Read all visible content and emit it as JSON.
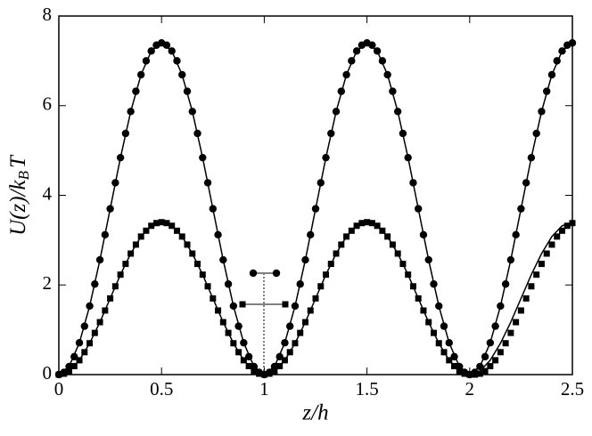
{
  "chart_data": {
    "type": "scatter",
    "x_label": "z/h",
    "y_label": [
      "U(z)/k",
      "B",
      "T"
    ],
    "xlim": [
      0,
      2.5
    ],
    "ylim": [
      0,
      8
    ],
    "xticks": [
      0,
      0.5,
      1,
      1.5,
      2,
      2.5
    ],
    "yticks": [
      0,
      2,
      4,
      6,
      8
    ],
    "series": [
      {
        "marker": "circle",
        "color": "#000000",
        "x": [
          0,
          0.025,
          0.05,
          0.075,
          0.1,
          0.125,
          0.15,
          0.175,
          0.2,
          0.225,
          0.25,
          0.275,
          0.3,
          0.325,
          0.35,
          0.375,
          0.4,
          0.425,
          0.45,
          0.475,
          0.5,
          0.525,
          0.55,
          0.575,
          0.6,
          0.625,
          0.65,
          0.675,
          0.7,
          0.725,
          0.75,
          0.775,
          0.8,
          0.825,
          0.85,
          0.875,
          0.9,
          0.925,
          0.95,
          0.975,
          1,
          1.025,
          1.05,
          1.075,
          1.1,
          1.125,
          1.15,
          1.175,
          1.2,
          1.225,
          1.25,
          1.275,
          1.3,
          1.325,
          1.35,
          1.375,
          1.4,
          1.425,
          1.45,
          1.475,
          1.5,
          1.525,
          1.55,
          1.575,
          1.6,
          1.625,
          1.65,
          1.675,
          1.7,
          1.725,
          1.75,
          1.775,
          1.8,
          1.825,
          1.85,
          1.875,
          1.9,
          1.925,
          1.95,
          1.975,
          2,
          2.025,
          2.05,
          2.075,
          2.1,
          2.125,
          2.15,
          2.175,
          2.2,
          2.225,
          2.25,
          2.275,
          2.3,
          2.325,
          2.35,
          2.375,
          2.4,
          2.425,
          2.45,
          2.475,
          2.5
        ],
        "values": [
          0,
          0.05,
          0.18,
          0.4,
          0.71,
          1.08,
          1.53,
          2.02,
          2.56,
          3.12,
          3.7,
          4.28,
          4.84,
          5.38,
          5.87,
          6.32,
          6.69,
          7.0,
          7.22,
          7.35,
          7.4,
          7.35,
          7.22,
          7.0,
          6.69,
          6.32,
          5.87,
          5.38,
          4.84,
          4.28,
          3.7,
          3.12,
          2.56,
          2.02,
          1.53,
          1.08,
          0.71,
          0.4,
          0.18,
          0.05,
          0,
          0.05,
          0.18,
          0.4,
          0.71,
          1.08,
          1.53,
          2.02,
          2.56,
          3.12,
          3.7,
          4.28,
          4.84,
          5.38,
          5.87,
          6.32,
          6.69,
          7.0,
          7.22,
          7.35,
          7.4,
          7.35,
          7.22,
          7.0,
          6.69,
          6.32,
          5.87,
          5.38,
          4.84,
          4.28,
          3.7,
          3.12,
          2.56,
          2.02,
          1.53,
          1.08,
          0.71,
          0.4,
          0.18,
          0.05,
          0,
          0.05,
          0.18,
          0.4,
          0.71,
          1.08,
          1.53,
          2.02,
          2.56,
          3.12,
          3.7,
          4.28,
          4.84,
          5.38,
          5.87,
          6.32,
          6.69,
          7.0,
          7.22,
          7.35,
          7.4
        ]
      },
      {
        "marker": "square",
        "color": "#000000",
        "x": [
          0,
          0.025,
          0.05,
          0.075,
          0.1,
          0.125,
          0.15,
          0.175,
          0.2,
          0.225,
          0.25,
          0.275,
          0.3,
          0.325,
          0.35,
          0.375,
          0.4,
          0.425,
          0.45,
          0.475,
          0.5,
          0.525,
          0.55,
          0.575,
          0.6,
          0.625,
          0.65,
          0.675,
          0.7,
          0.725,
          0.75,
          0.775,
          0.8,
          0.825,
          0.85,
          0.875,
          0.9,
          0.925,
          0.95,
          0.975,
          1,
          1.025,
          1.05,
          1.075,
          1.1,
          1.125,
          1.15,
          1.175,
          1.2,
          1.225,
          1.25,
          1.275,
          1.3,
          1.325,
          1.35,
          1.375,
          1.4,
          1.425,
          1.45,
          1.475,
          1.5,
          1.525,
          1.55,
          1.575,
          1.6,
          1.625,
          1.65,
          1.675,
          1.7,
          1.725,
          1.75,
          1.775,
          1.8,
          1.825,
          1.85,
          1.875,
          1.9,
          1.925,
          1.95,
          1.975,
          2,
          2.025,
          2.05,
          2.075,
          2.1,
          2.125,
          2.15,
          2.175,
          2.2,
          2.225,
          2.25,
          2.275,
          2.3,
          2.325,
          2.35,
          2.375,
          2.4,
          2.425,
          2.45,
          2.475,
          2.5
        ],
        "values": [
          0,
          0.02,
          0.08,
          0.19,
          0.32,
          0.5,
          0.7,
          0.93,
          1.17,
          1.43,
          1.7,
          1.97,
          2.23,
          2.47,
          2.7,
          2.9,
          3.08,
          3.21,
          3.32,
          3.38,
          3.4,
          3.38,
          3.32,
          3.21,
          3.08,
          2.9,
          2.7,
          2.47,
          2.23,
          1.97,
          1.7,
          1.43,
          1.17,
          0.93,
          0.7,
          0.5,
          0.32,
          0.19,
          0.08,
          0.02,
          0,
          0.02,
          0.08,
          0.19,
          0.32,
          0.5,
          0.7,
          0.93,
          1.17,
          1.43,
          1.7,
          1.97,
          2.23,
          2.47,
          2.7,
          2.9,
          3.08,
          3.21,
          3.32,
          3.38,
          3.4,
          3.38,
          3.32,
          3.21,
          3.08,
          2.9,
          2.7,
          2.47,
          2.23,
          1.97,
          1.7,
          1.43,
          1.17,
          0.93,
          0.7,
          0.5,
          0.32,
          0.19,
          0.08,
          0.02,
          0,
          0,
          0.02,
          0.08,
          0.19,
          0.32,
          0.5,
          0.7,
          0.93,
          1.17,
          1.43,
          1.7,
          1.97,
          2.23,
          2.47,
          2.7,
          2.9,
          3.08,
          3.21,
          3.32,
          3.38
        ]
      },
      {
        "marker": "none",
        "color": "#000000",
        "x": [
          0,
          0.05,
          0.1,
          0.15,
          0.2,
          0.25,
          0.3,
          0.35,
          0.4,
          0.45,
          0.5,
          0.55,
          0.6,
          0.65,
          0.7,
          0.75,
          0.8,
          0.85,
          0.9,
          0.95,
          1,
          1.05,
          1.1,
          1.15,
          1.2,
          1.25,
          1.3,
          1.35,
          1.4,
          1.45,
          1.5,
          1.55,
          1.6,
          1.65,
          1.7,
          1.75,
          1.8,
          1.85,
          1.9,
          1.95,
          2,
          2.05,
          2.1,
          2.15,
          2.2,
          2.25,
          2.3,
          2.35,
          2.4,
          2.45,
          2.5
        ],
        "values": [
          0,
          0.18,
          0.71,
          1.53,
          2.56,
          3.7,
          4.84,
          5.87,
          6.69,
          7.22,
          7.4,
          7.22,
          6.69,
          5.87,
          4.84,
          3.7,
          2.56,
          1.53,
          0.71,
          0.18,
          0,
          0.18,
          0.71,
          1.53,
          2.56,
          3.7,
          4.84,
          5.87,
          6.69,
          7.22,
          7.4,
          7.22,
          6.69,
          5.87,
          4.84,
          3.7,
          2.56,
          1.53,
          0.71,
          0.18,
          0,
          0.18,
          0.71,
          1.53,
          2.56,
          3.7,
          4.84,
          5.87,
          6.69,
          7.22,
          7.4
        ]
      },
      {
        "marker": "none",
        "color": "#000000",
        "x": [
          0,
          0.05,
          0.1,
          0.15,
          0.2,
          0.25,
          0.3,
          0.35,
          0.4,
          0.45,
          0.5,
          0.55,
          0.6,
          0.65,
          0.7,
          0.75,
          0.8,
          0.85,
          0.9,
          0.95,
          1,
          1.05,
          1.1,
          1.15,
          1.2,
          1.25,
          1.3,
          1.35,
          1.4,
          1.45,
          1.5,
          1.55,
          1.6,
          1.65,
          1.7,
          1.75,
          1.8,
          1.85,
          1.9,
          1.95,
          2,
          2.05,
          2.1,
          2.15,
          2.2,
          2.25,
          2.3,
          2.35,
          2.4,
          2.45,
          2.5
        ],
        "values": [
          0,
          0.08,
          0.32,
          0.7,
          1.17,
          1.7,
          2.23,
          2.7,
          3.08,
          3.32,
          3.4,
          3.32,
          3.08,
          2.7,
          2.23,
          1.7,
          1.17,
          0.7,
          0.32,
          0.08,
          0,
          0.08,
          0.32,
          0.7,
          1.17,
          1.7,
          2.23,
          2.7,
          3.08,
          3.32,
          3.4,
          3.32,
          3.08,
          2.7,
          2.23,
          1.7,
          1.17,
          0.7,
          0.32,
          0.08,
          0,
          0.08,
          0.32,
          0.7,
          1.17,
          1.7,
          2.23,
          2.7,
          3.08,
          3.32,
          3.4
        ]
      }
    ]
  }
}
